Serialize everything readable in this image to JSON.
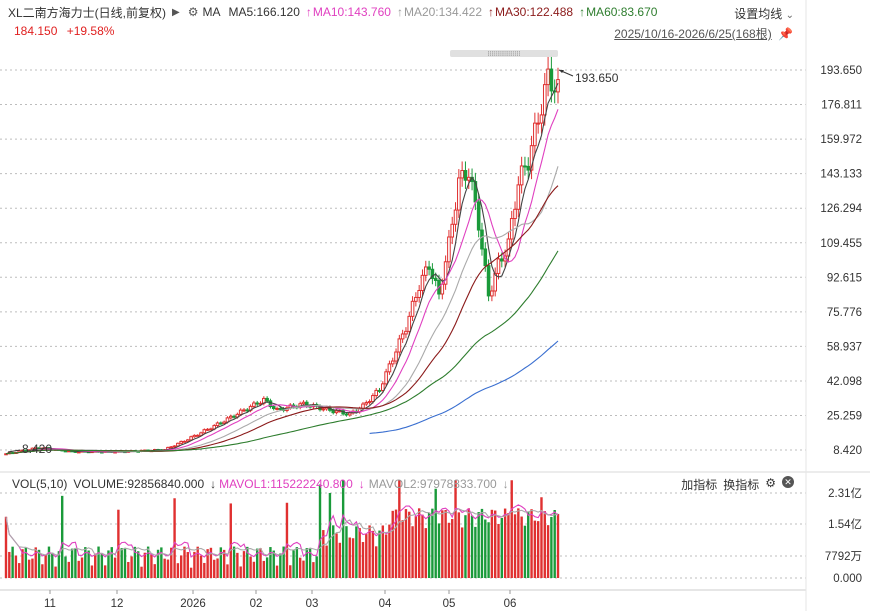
{
  "header": {
    "stock_title": "XL二南方海力士(日线,前复权)",
    "play_icon": "play-triangle-icon",
    "gear_icon": "gear-icon",
    "ma_label": "MA",
    "ma5": "MA5:166.120",
    "ma10": "MA10:143.760",
    "ma20": "MA20:134.422",
    "ma30": "MA30:122.488",
    "ma60": "MA60:83.670",
    "ma10_arrow": "↑",
    "ma20_arrow": "↑",
    "ma30_arrow": "↑",
    "ma60_arrow": "↑",
    "settings_label": "设置均线",
    "price": "184.150",
    "change": "+19.58%",
    "date_range": "2025/10/16-2026/6/25(168根)"
  },
  "colors": {
    "up": "#e03030",
    "down": "#1a9a3a",
    "ma5": "#444444",
    "ma10": "#e040c0",
    "ma20": "#aaaaaa",
    "ma30": "#8b1a1a",
    "ma60": "#2e7d2e",
    "ma120": "#3a6fd0"
  },
  "price_axis": [
    "193.650",
    "176.811",
    "159.972",
    "143.133",
    "126.294",
    "109.455",
    "92.615",
    "75.776",
    "58.937",
    "42.098",
    "25.259",
    "8.420"
  ],
  "annotations": {
    "high_label": "193.650",
    "low_label": "8.420"
  },
  "volume": {
    "vol_label": "VOL(5,10)",
    "volume": "VOLUME:92856840.000",
    "volume_arrow": "↓",
    "mavol1": "MAVOL1:115222240.800",
    "mavol1_arrow": "↓",
    "mavol2": "MAVOL2:97978833.700",
    "mavol2_arrow": "↓",
    "add_indicator": "加指标",
    "switch_indicator": "换指标",
    "axis": [
      "2.31亿",
      "1.54亿",
      "7792万",
      "0.000"
    ]
  },
  "x_axis": [
    "11",
    "12",
    "2026",
    "02",
    "03",
    "04",
    "05",
    "06"
  ]
}
